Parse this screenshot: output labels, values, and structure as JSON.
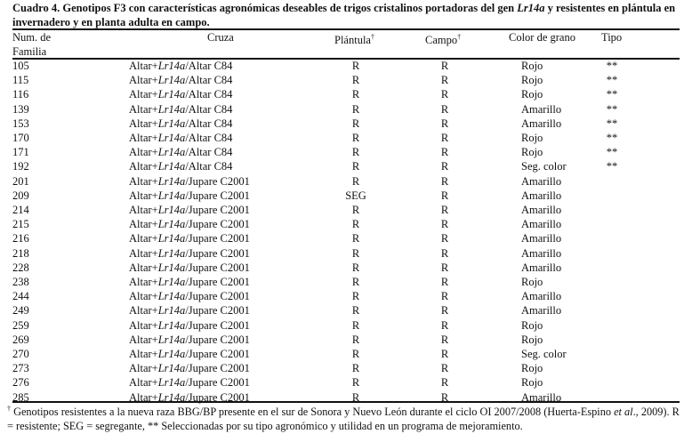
{
  "title": {
    "prefix": "Cuadro 4. Genotipos F3 con características agronómicas deseables de trigos cristalinos portadoras del gen ",
    "gene": "Lr14a",
    "suffix": " y resistentes en plántula en invernadero y en  planta adulta en campo."
  },
  "headers": {
    "num": "Num. de",
    "num2": "Familia",
    "cruza": "Cruza",
    "plantula": "Plántula",
    "campo": "Campo",
    "dagger": "†",
    "color": "Color de grano",
    "tipo": "Tipo"
  },
  "rows": [
    {
      "num": "105",
      "p1": "Altar+",
      "gene": "Lr14a",
      "p2": "/Altar C84",
      "pl": "R",
      "ca": "R",
      "color": "Rojo",
      "tipo": "**"
    },
    {
      "num": "115",
      "p1": "Altar+",
      "gene": "Lr14a",
      "p2": "/Altar C84",
      "pl": "R",
      "ca": "R",
      "color": "Rojo",
      "tipo": "**"
    },
    {
      "num": "116",
      "p1": "Altar+",
      "gene": "Lr14a",
      "p2": "/Altar C84",
      "pl": "R",
      "ca": "R",
      "color": "Rojo",
      "tipo": "**"
    },
    {
      "num": "139",
      "p1": "Altar+",
      "gene": "Lr14a",
      "p2": "/Altar C84",
      "pl": "R",
      "ca": "R",
      "color": "Amarillo",
      "tipo": "**"
    },
    {
      "num": "153",
      "p1": "Altar+",
      "gene": "Lr14a",
      "p2": "/Altar C84",
      "pl": "R",
      "ca": "R",
      "color": "Amarillo",
      "tipo": "**"
    },
    {
      "num": "170",
      "p1": "Altar+",
      "gene": "Lr14a",
      "p2": "/Altar C84",
      "pl": "R",
      "ca": "R",
      "color": "Rojo",
      "tipo": "**"
    },
    {
      "num": "171",
      "p1": "Altar+",
      "gene": "Lr14a",
      "p2": "/Altar C84",
      "pl": "R",
      "ca": "R",
      "color": "Rojo",
      "tipo": "**"
    },
    {
      "num": "192",
      "p1": "Altar+",
      "gene": "Lr14a",
      "p2": "/Altar C84",
      "pl": "R",
      "ca": "R",
      "color": "Seg. color",
      "tipo": "**"
    },
    {
      "num": "201",
      "p1": "Altar+",
      "gene": "Lr14a",
      "p2": "/Jupare C2001",
      "pl": "R",
      "ca": "R",
      "color": "Amarillo",
      "tipo": ""
    },
    {
      "num": "209",
      "p1": "Altar+",
      "gene": "Lr14a",
      "p2": "/Jupare C2001",
      "pl": "SEG",
      "ca": "R",
      "color": "Amarillo",
      "tipo": ""
    },
    {
      "num": "214",
      "p1": "Altar+",
      "gene": "Lr14a",
      "p2": "/Jupare C2001",
      "pl": "R",
      "ca": "R",
      "color": "Amarillo",
      "tipo": ""
    },
    {
      "num": "215",
      "p1": "Altar+",
      "gene": "Lr14a",
      "p2": "/Jupare C2001",
      "pl": "R",
      "ca": "R",
      "color": "Amarillo",
      "tipo": ""
    },
    {
      "num": "216",
      "p1": "Altar+",
      "gene": "Lr14a",
      "p2": "/Jupare C2001",
      "pl": "R",
      "ca": "R",
      "color": "Amarillo",
      "tipo": ""
    },
    {
      "num": "218",
      "p1": "Altar+",
      "gene": "Lr14a",
      "p2": "/Jupare C2001",
      "pl": "R",
      "ca": "R",
      "color": "Amarillo",
      "tipo": ""
    },
    {
      "num": "228",
      "p1": "Altar+",
      "gene": "Lr14a",
      "p2": "/Jupare C2001",
      "pl": "R",
      "ca": "R",
      "color": "Amarillo",
      "tipo": ""
    },
    {
      "num": "238",
      "p1": "Altar+",
      "gene": "Lr14a",
      "p2": "/Jupare C2001",
      "pl": "R",
      "ca": "R",
      "color": "Rojo",
      "tipo": ""
    },
    {
      "num": "244",
      "p1": "Altar+",
      "gene": "Lr14a",
      "p2": "/Jupare C2001",
      "pl": "R",
      "ca": "R",
      "color": "Amarillo",
      "tipo": ""
    },
    {
      "num": "249",
      "p1": "Altar+",
      "gene": "Lr14a",
      "p2": "/Jupare C2001",
      "pl": "R",
      "ca": "R",
      "color": "Amarillo",
      "tipo": ""
    },
    {
      "num": "259",
      "p1": "Altar+",
      "gene": "Lr14a",
      "p2": "/Jupare C2001",
      "pl": "R",
      "ca": "R",
      "color": "Rojo",
      "tipo": ""
    },
    {
      "num": "269",
      "p1": "Altar+",
      "gene": "Lr14a",
      "p2": "/Jupare C2001",
      "pl": "R",
      "ca": "R",
      "color": "Rojo",
      "tipo": ""
    },
    {
      "num": "270",
      "p1": "Altar+",
      "gene": "Lr14a",
      "p2": "/Jupare C2001",
      "pl": "R",
      "ca": "R",
      "color": "Seg. color",
      "tipo": ""
    },
    {
      "num": "273",
      "p1": "Altar+",
      "gene": "Lr14a",
      "p2": "/Jupare C2001",
      "pl": "R",
      "ca": "R",
      "color": "Rojo",
      "tipo": ""
    },
    {
      "num": "276",
      "p1": "Altar+",
      "gene": "Lr14a",
      "p2": "/Jupare C2001",
      "pl": "R",
      "ca": "R",
      "color": "Rojo",
      "tipo": ""
    },
    {
      "num": "285",
      "p1": "Altar+",
      "gene": "Lr14a",
      "p2": "/Jupare C2001",
      "pl": "R",
      "ca": "R",
      "color": "Amarillo",
      "tipo": ""
    }
  ],
  "footnote": {
    "dagger": "†",
    "text1": " Genotipos resistentes a la nueva raza BBG/BP presente en el sur de Sonora y Nuevo León durante el ciclo OI 2007/2008 (Huerta-Espino ",
    "etal": "et al",
    "text2": "., 2009). R = resistente; SEG = segregante, ** Seleccionadas por su tipo agronómico y utilidad en un programa de mejoramiento."
  }
}
